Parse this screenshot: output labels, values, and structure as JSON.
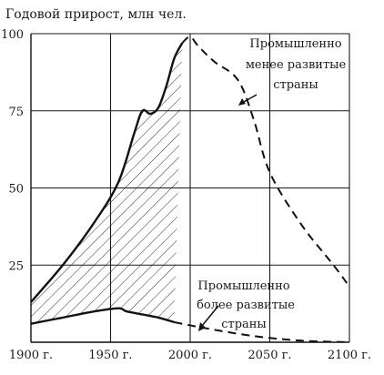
{
  "chart_data": {
    "type": "line",
    "title": "Годовой прирост, млн чел.",
    "xlabel": "",
    "ylabel": "",
    "xlim": [
      1900,
      2100
    ],
    "ylim": [
      0,
      100
    ],
    "x_ticks": [
      1900,
      1950,
      2000,
      2050,
      2100
    ],
    "x_tick_labels": [
      "1900 г.",
      "1950 г.",
      "2000 г.",
      "2050 г.",
      "2100 г."
    ],
    "y_ticks": [
      25,
      50,
      75,
      100
    ],
    "y_tick_labels": [
      "25",
      "50",
      "75",
      "100"
    ],
    "grid": true,
    "series": [
      {
        "name": "Промышленно менее развитые страны",
        "points_historical": [
          [
            1900,
            13
          ],
          [
            1920,
            25
          ],
          [
            1940,
            39
          ],
          [
            1955,
            52
          ],
          [
            1965,
            68
          ],
          [
            1970,
            75
          ],
          [
            1975,
            74
          ],
          [
            1980,
            76
          ],
          [
            1985,
            83
          ],
          [
            1990,
            92
          ],
          [
            1995,
            97
          ]
        ],
        "points_projected": [
          [
            1995,
            97
          ],
          [
            2000,
            99
          ],
          [
            2005,
            96
          ],
          [
            2015,
            91
          ],
          [
            2030,
            85
          ],
          [
            2040,
            72
          ],
          [
            2050,
            55
          ],
          [
            2070,
            38
          ],
          [
            2090,
            25
          ],
          [
            2100,
            18
          ]
        ]
      },
      {
        "name": "Промышленно более развитые страны",
        "points_historical": [
          [
            1900,
            6
          ],
          [
            1920,
            8
          ],
          [
            1940,
            10
          ],
          [
            1955,
            11
          ],
          [
            1960,
            10
          ],
          [
            1970,
            9
          ],
          [
            1980,
            8
          ],
          [
            1990,
            6.5
          ]
        ],
        "points_projected": [
          [
            1990,
            6.5
          ],
          [
            2010,
            4.5
          ],
          [
            2040,
            2
          ],
          [
            2070,
            0.5
          ],
          [
            2100,
            0
          ]
        ]
      }
    ],
    "annotations": {
      "developing": [
        "Промышленно",
        "менее развитые",
        "страны"
      ],
      "developed": [
        "Промышленно",
        "более развитые",
        "страны"
      ]
    },
    "hatched_region": {
      "from": 1900,
      "to": 1990
    }
  }
}
